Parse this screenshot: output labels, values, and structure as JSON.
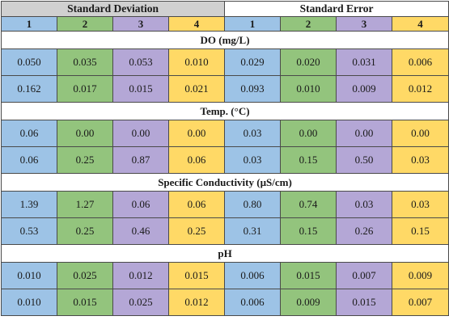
{
  "headers": {
    "std_dev": "Standard Deviation",
    "std_err": "Standard Error",
    "columns": [
      "1",
      "2",
      "3",
      "4",
      "1",
      "2",
      "3",
      "4"
    ]
  },
  "sections": [
    {
      "title": "DO (mg/L)",
      "rows": [
        [
          "0.050",
          "0.035",
          "0.053",
          "0.010",
          "0.029",
          "0.020",
          "0.031",
          "0.006"
        ],
        [
          "0.162",
          "0.017",
          "0.015",
          "0.021",
          "0.093",
          "0.010",
          "0.009",
          "0.012"
        ]
      ]
    },
    {
      "title": "Temp. (°C)",
      "rows": [
        [
          "0.06",
          "0.00",
          "0.00",
          "0.00",
          "0.03",
          "0.00",
          "0.00",
          "0.00"
        ],
        [
          "0.06",
          "0.25",
          "0.87",
          "0.06",
          "0.03",
          "0.15",
          "0.50",
          "0.03"
        ]
      ]
    },
    {
      "title": "Specific Conductivity (µS/cm)",
      "rows": [
        [
          "1.39",
          "1.27",
          "0.06",
          "0.06",
          "0.80",
          "0.74",
          "0.03",
          "0.03"
        ],
        [
          "0.53",
          "0.25",
          "0.46",
          "0.25",
          "0.31",
          "0.15",
          "0.26",
          "0.15"
        ]
      ]
    },
    {
      "title": "pH",
      "rows": [
        [
          "0.010",
          "0.025",
          "0.012",
          "0.015",
          "0.006",
          "0.015",
          "0.007",
          "0.009"
        ],
        [
          "0.010",
          "0.015",
          "0.025",
          "0.012",
          "0.006",
          "0.009",
          "0.015",
          "0.007"
        ]
      ]
    }
  ]
}
